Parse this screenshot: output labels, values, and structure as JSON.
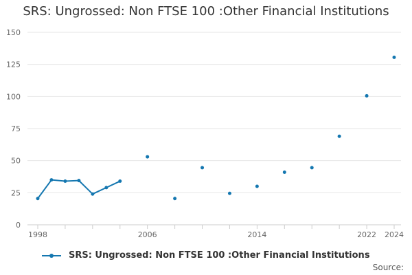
{
  "colors": {
    "series": "#1477b0",
    "grid": "#e6e6e6",
    "axis": "#cccccc"
  },
  "source_label": "Source:",
  "chart_data": {
    "type": "line",
    "title": "SRS: Ungrossed: Non FTSE 100 :Other Financial Institutions",
    "xlabel": "",
    "ylabel": "",
    "ylim": [
      0,
      150
    ],
    "yticks": [
      0,
      25,
      50,
      75,
      100,
      125,
      150
    ],
    "xlim": [
      1998,
      2024
    ],
    "xticks": [
      1998,
      2006,
      2014,
      2022,
      2024
    ],
    "grid": true,
    "legend_position": "bottom",
    "series": [
      {
        "name": "SRS: Ungrossed: Non FTSE 100 :Other Financial Institutions",
        "x": [
          1998,
          1999,
          2000,
          2001,
          2002,
          2003,
          2004,
          2006,
          2008,
          2010,
          2012,
          2014,
          2016,
          2018,
          2020,
          2022,
          2024
        ],
        "y": [
          20.5,
          35,
          34,
          34.5,
          24,
          29,
          34,
          53,
          20.5,
          44.5,
          24.5,
          30,
          41,
          44.5,
          69,
          100.5,
          130.5
        ]
      }
    ]
  }
}
